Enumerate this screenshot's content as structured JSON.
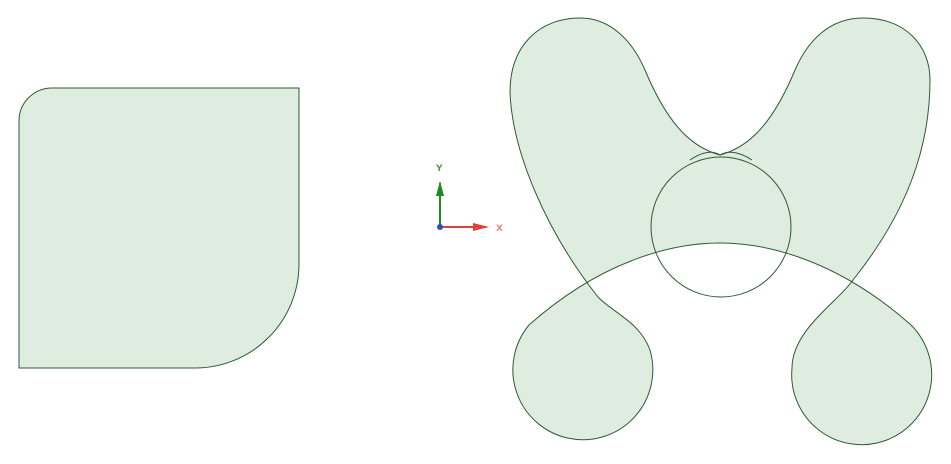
{
  "canvas": {
    "background": "#ffffff"
  },
  "shape_style": {
    "fill": "#dfece0",
    "stroke": "#2f5a35"
  },
  "axis_triad": {
    "x_label": "X",
    "y_label": "Y",
    "x_color": "#e0403a",
    "y_color": "#1c8a1c",
    "origin_color": "#2b52b8",
    "x_label_color": "#e88a88",
    "y_label_color": "#4d9e4d"
  }
}
